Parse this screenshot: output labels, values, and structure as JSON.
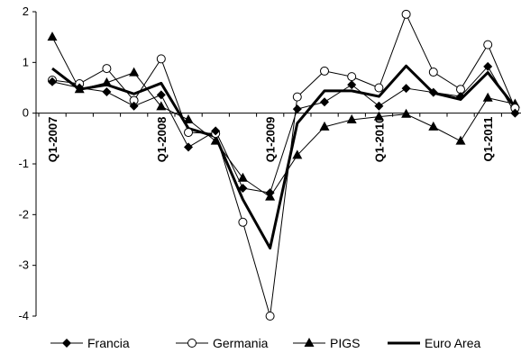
{
  "chart_data": {
    "type": "line",
    "title": "",
    "xlabel": "",
    "ylabel": "",
    "ylim": [
      -4,
      2
    ],
    "yticks": [
      "2",
      "1",
      "0",
      "-1",
      "-2",
      "-3",
      "-4"
    ],
    "x_labels": [
      {
        "index": 0,
        "label": "Q1-2007"
      },
      {
        "index": 4,
        "label": "Q1-2008"
      },
      {
        "index": 8,
        "label": "Q1-2009"
      },
      {
        "index": 12,
        "label": "Q1-2010"
      },
      {
        "index": 16,
        "label": "Q1-2011"
      }
    ],
    "n_points": 18,
    "legend_position": "bottom",
    "series": [
      {
        "name": "Francia",
        "marker": "diamond",
        "line": "thin",
        "color": "#000000",
        "values": [
          0.62,
          0.5,
          0.42,
          0.14,
          0.36,
          -0.67,
          -0.35,
          -1.48,
          -1.57,
          0.08,
          0.22,
          0.56,
          0.14,
          0.49,
          0.41,
          0.33,
          0.92,
          0.0
        ]
      },
      {
        "name": "Germania",
        "marker": "circle-open",
        "line": "thin",
        "color": "#000000",
        "values": [
          0.65,
          0.58,
          0.88,
          0.25,
          1.07,
          -0.38,
          -0.4,
          -2.15,
          -4.0,
          0.32,
          0.83,
          0.72,
          0.5,
          1.95,
          0.81,
          0.47,
          1.35,
          0.1
        ]
      },
      {
        "name": "PIGS",
        "marker": "triangle",
        "line": "thin",
        "color": "#000000",
        "values": [
          1.5,
          0.47,
          0.6,
          0.8,
          0.13,
          -0.13,
          -0.55,
          -1.28,
          -1.65,
          -0.83,
          -0.27,
          -0.13,
          -0.07,
          -0.02,
          -0.27,
          -0.55,
          0.3,
          0.18
        ]
      },
      {
        "name": "Euro Area",
        "marker": "none",
        "line": "thick",
        "color": "#000000",
        "values": [
          0.88,
          0.47,
          0.56,
          0.38,
          0.59,
          -0.3,
          -0.46,
          -1.7,
          -2.66,
          -0.2,
          0.44,
          0.44,
          0.33,
          0.93,
          0.4,
          0.27,
          0.8,
          0.12
        ]
      }
    ]
  }
}
